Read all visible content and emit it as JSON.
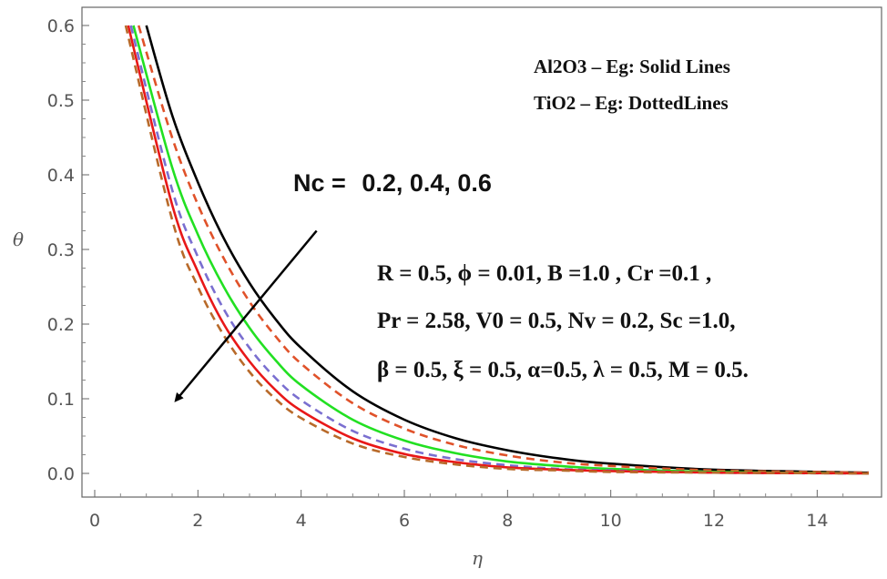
{
  "chart_data": {
    "type": "line",
    "xlabel": "η",
    "ylabel": "θ",
    "xlim": [
      0,
      15
    ],
    "ylim": [
      0,
      0.6
    ],
    "x_ticks": [
      "0",
      "2",
      "4",
      "6",
      "8",
      "10",
      "12",
      "14"
    ],
    "y_ticks": [
      "0.0",
      "0.1",
      "0.2",
      "0.3",
      "0.4",
      "0.5",
      "0.6"
    ],
    "grid": false,
    "legend": {
      "solid": "Al2O3 – Eg: Solid Lines",
      "dotted": "TiO2 – Eg: DottedLines"
    },
    "annotation": {
      "label": "Nc =",
      "values": "0.2, 0.4, 0.6",
      "arrow_from": [
        4.3,
        0.325
      ],
      "arrow_to": [
        1.6,
        0.1
      ]
    },
    "parameters": [
      "R = 0.5, ϕ = 0.01, B =1.0 , Cr =0.1 ,",
      "Pr = 2.58, V0 = 0.5, Nv = 0.2, Sc =1.0,",
      "β = 0.5, ξ = 0.5,  α=0.5, λ = 0.5, M = 0.5."
    ],
    "series": [
      {
        "style": "solid",
        "color": "#000000",
        "x": [
          1.0,
          1.5,
          2.0,
          2.5,
          3.0,
          3.5,
          4.0,
          5.0,
          6.0,
          7.0,
          8.0,
          9.0,
          10.0,
          12.0,
          15.0
        ],
        "y": [
          0.6,
          0.48,
          0.39,
          0.315,
          0.255,
          0.207,
          0.168,
          0.11,
          0.072,
          0.047,
          0.031,
          0.02,
          0.013,
          0.005,
          0.001
        ]
      },
      {
        "style": "dashed",
        "color": "#e0522a",
        "x": [
          0.85,
          1.5,
          2.0,
          2.5,
          3.0,
          3.5,
          4.0,
          5.0,
          6.0,
          7.0,
          8.0,
          9.0,
          10.0,
          12.0,
          15.0
        ],
        "y": [
          0.6,
          0.45,
          0.36,
          0.288,
          0.23,
          0.184,
          0.147,
          0.094,
          0.06,
          0.038,
          0.024,
          0.015,
          0.01,
          0.004,
          0.001
        ]
      },
      {
        "style": "solid",
        "color": "#22e022",
        "x": [
          0.75,
          1.5,
          2.0,
          2.5,
          3.0,
          3.5,
          4.0,
          5.0,
          6.0,
          7.0,
          8.0,
          9.0,
          10.0,
          12.0,
          15.0
        ],
        "y": [
          0.6,
          0.41,
          0.32,
          0.25,
          0.195,
          0.152,
          0.118,
          0.072,
          0.044,
          0.027,
          0.016,
          0.01,
          0.006,
          0.002,
          0.0
        ]
      },
      {
        "style": "dashed",
        "color": "#7a6fd0",
        "x": [
          0.7,
          1.5,
          2.0,
          2.5,
          3.0,
          3.5,
          4.0,
          5.0,
          6.0,
          7.0,
          8.0,
          9.0,
          10.0,
          12.0,
          15.0
        ],
        "y": [
          0.6,
          0.38,
          0.29,
          0.22,
          0.168,
          0.128,
          0.098,
          0.057,
          0.033,
          0.019,
          0.011,
          0.006,
          0.004,
          0.001,
          0.0
        ]
      },
      {
        "style": "solid",
        "color": "#e81818",
        "x": [
          0.65,
          1.5,
          2.0,
          2.5,
          3.0,
          3.5,
          4.0,
          5.0,
          6.0,
          7.0,
          8.0,
          9.0,
          10.0,
          12.0,
          15.0
        ],
        "y": [
          0.6,
          0.36,
          0.27,
          0.2,
          0.15,
          0.112,
          0.084,
          0.047,
          0.026,
          0.015,
          0.008,
          0.005,
          0.003,
          0.001,
          0.0
        ]
      },
      {
        "style": "dashed",
        "color": "#b86a2a",
        "x": [
          0.6,
          1.5,
          2.0,
          2.5,
          3.0,
          3.5,
          4.0,
          5.0,
          6.0,
          7.0,
          8.0,
          9.0,
          10.0,
          12.0,
          15.0
        ],
        "y": [
          0.6,
          0.34,
          0.25,
          0.185,
          0.136,
          0.1,
          0.074,
          0.04,
          0.022,
          0.012,
          0.006,
          0.004,
          0.002,
          0.001,
          0.0
        ]
      }
    ]
  }
}
